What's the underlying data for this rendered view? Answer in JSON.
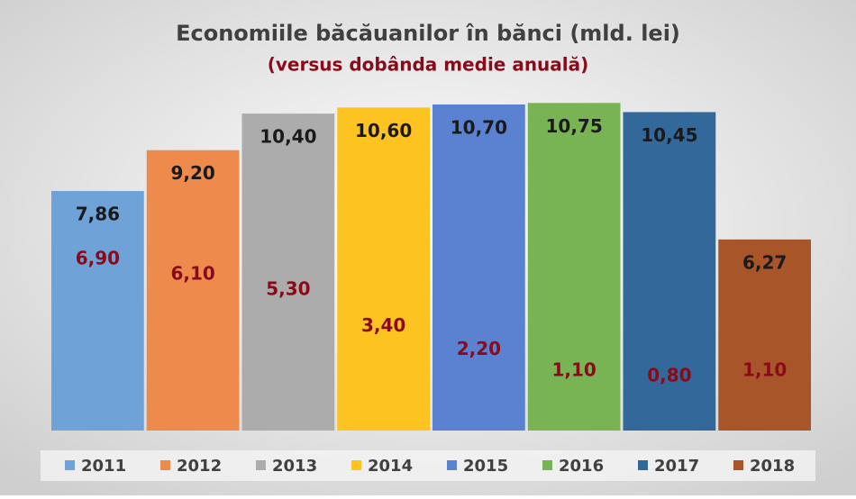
{
  "chart_data": {
    "type": "bar",
    "title": "Economiile băcăuanilor în bănci (mld. lei)",
    "subtitle": "(versus dobânda medie anuală)",
    "ylim": [
      0,
      12
    ],
    "series": [
      {
        "name": "2011",
        "color": "#6fa3d8",
        "values": [
          7.86
        ],
        "value_labels": [
          "7,86"
        ]
      },
      {
        "name": "2012",
        "color": "#ed8a4c",
        "values": [
          9.2
        ],
        "value_labels": [
          "9,20"
        ]
      },
      {
        "name": "2013",
        "color": "#acacac",
        "values": [
          10.4
        ],
        "value_labels": [
          "10,40"
        ]
      },
      {
        "name": "2014",
        "color": "#fdc321",
        "values": [
          10.6
        ],
        "value_labels": [
          "10,60"
        ]
      },
      {
        "name": "2015",
        "color": "#5b81d1",
        "values": [
          10.7
        ],
        "value_labels": [
          "10,70"
        ]
      },
      {
        "name": "2016",
        "color": "#79b454",
        "values": [
          10.75
        ],
        "value_labels": [
          "10,75"
        ]
      },
      {
        "name": "2017",
        "color": "#33689b",
        "values": [
          10.45
        ],
        "value_labels": [
          "10,45"
        ]
      },
      {
        "name": "2018",
        "color": "#a8552a",
        "values": [
          6.27
        ],
        "value_labels": [
          "6,27"
        ]
      }
    ],
    "rates": {
      "axis": "y2",
      "color": "#8b0a1a",
      "values": [
        6.9,
        6.1,
        5.3,
        3.4,
        2.2,
        1.1,
        0.8,
        1.1
      ],
      "value_labels": [
        "6,90",
        "6,10",
        "5,30",
        "3,40",
        "2,20",
        "1,10",
        "0,80",
        "1,10"
      ]
    },
    "y2lim": [
      -2,
      17
    ]
  }
}
